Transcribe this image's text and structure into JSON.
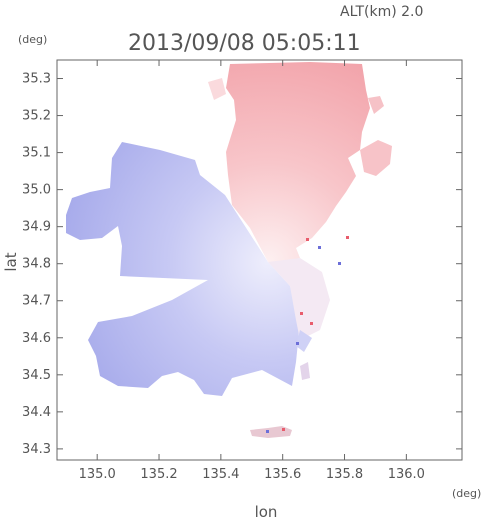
{
  "header": {
    "altitude_label": "ALT(km) 2.0",
    "timestamp": "2013/09/08 05:05:11",
    "y_unit": "(deg)",
    "x_unit": "(deg)"
  },
  "axes": {
    "xlabel": "lon",
    "ylabel": "lat"
  },
  "chart_data": {
    "type": "heatmap",
    "xlabel": "lon",
    "ylabel": "lat",
    "xlim": [
      134.87,
      136.18
    ],
    "ylim": [
      34.27,
      35.35
    ],
    "x_ticks": [
      "135.0",
      "135.2",
      "135.4",
      "135.6",
      "135.8",
      "136.0"
    ],
    "y_ticks": [
      "34.3",
      "34.4",
      "34.5",
      "34.6",
      "34.7",
      "34.8",
      "34.9",
      "35.0",
      "35.1",
      "35.2",
      "35.3"
    ],
    "radar_center": {
      "lon": 135.53,
      "lat": 34.82
    },
    "colors": {
      "approaching": "#9aa0ec",
      "approaching_light": "#dcdcfa",
      "receding": "#f4a4ac",
      "receding_light": "#fbe0e2"
    },
    "grid": false
  }
}
